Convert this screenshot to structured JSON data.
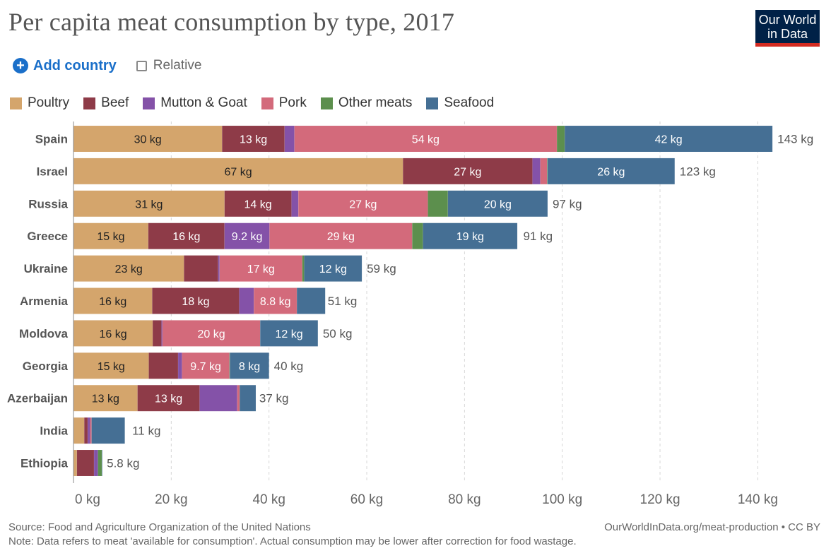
{
  "title": "Per capita meat consumption by type, 2017",
  "logo": {
    "line1": "Our World",
    "line2": "in Data"
  },
  "controls": {
    "add_label": "Add country",
    "add_icon": "plus-icon",
    "relative_label": "Relative"
  },
  "colors": {
    "poultry": "#d4a56c",
    "beef": "#8e3b48",
    "mutton": "#8452a8",
    "pork": "#d36a7b",
    "other": "#5c8f4d",
    "seafood": "#456f94"
  },
  "chart_data": {
    "type": "bar",
    "orientation": "horizontal",
    "stacked": true,
    "title": "Per capita meat consumption by type, 2017",
    "xlabel": "",
    "ylabel": "",
    "unit": "kg",
    "xlim": [
      0,
      143
    ],
    "x_ticks": [
      0,
      20,
      40,
      60,
      80,
      100,
      120,
      140
    ],
    "x_tick_labels": [
      "0 kg",
      "20 kg",
      "40 kg",
      "60 kg",
      "80 kg",
      "100 kg",
      "120 kg",
      "140 kg"
    ],
    "grid": "vertical dashed",
    "legend_position": "top-left",
    "categories": [
      "Spain",
      "Israel",
      "Russia",
      "Greece",
      "Ukraine",
      "Armenia",
      "Moldova",
      "Georgia",
      "Azerbaijan",
      "India",
      "Ethiopia"
    ],
    "totals": [
      143,
      123,
      97,
      91,
      59,
      51,
      50,
      40,
      37,
      11,
      5.8
    ],
    "total_labels": [
      "143 kg",
      "123 kg",
      "97 kg",
      "91 kg",
      "59 kg",
      "51 kg",
      "50 kg",
      "40 kg",
      "37 kg",
      "11 kg",
      "5.8 kg"
    ],
    "series": [
      {
        "name": "Poultry",
        "key": "poultry",
        "values": [
          30.4,
          67.4,
          30.9,
          15.3,
          22.6,
          16.1,
          16.2,
          15.4,
          13.1,
          2.2,
          0.7
        ],
        "labels": [
          "30 kg",
          "67 kg",
          "31 kg",
          "15 kg",
          "23 kg",
          "16 kg",
          "16 kg",
          "15 kg",
          "13 kg",
          "",
          ""
        ]
      },
      {
        "name": "Beef",
        "key": "beef",
        "values": [
          12.8,
          26.5,
          13.7,
          15.6,
          7.0,
          17.8,
          1.8,
          6.0,
          12.7,
          0.7,
          3.5
        ],
        "labels": [
          "13 kg",
          "27 kg",
          "14 kg",
          "16 kg",
          "",
          "18 kg",
          "",
          "",
          "13 kg",
          "",
          ""
        ]
      },
      {
        "name": "Mutton & Goat",
        "key": "mutton",
        "values": [
          2.0,
          1.6,
          1.4,
          9.2,
          0.3,
          3.0,
          0.2,
          0.8,
          7.7,
          0.5,
          0.8
        ],
        "labels": [
          "",
          "",
          "",
          "9.2 kg",
          "",
          "",
          "",
          "",
          "",
          "",
          ""
        ]
      },
      {
        "name": "Pork",
        "key": "pork",
        "values": [
          53.7,
          1.4,
          26.5,
          29.2,
          16.9,
          8.8,
          20.0,
          9.7,
          0.5,
          0.3,
          0.0
        ],
        "labels": [
          "54 kg",
          "",
          "27 kg",
          "29 kg",
          "17 kg",
          "8.8 kg",
          "20 kg",
          "9.7 kg",
          "",
          "",
          ""
        ]
      },
      {
        "name": "Other meats",
        "key": "other",
        "values": [
          1.6,
          0.1,
          4.1,
          2.2,
          0.4,
          0.0,
          0.0,
          0.1,
          0.0,
          0.0,
          0.8
        ],
        "labels": [
          "",
          "",
          "",
          "",
          "",
          "",
          "",
          "",
          "",
          "",
          ""
        ]
      },
      {
        "name": "Seafood",
        "key": "seafood",
        "values": [
          42.5,
          26.0,
          20.4,
          19.3,
          11.8,
          5.8,
          11.8,
          8.0,
          3.3,
          6.8,
          0.1
        ],
        "labels": [
          "42 kg",
          "26 kg",
          "20 kg",
          "19 kg",
          "12 kg",
          "",
          "12 kg",
          "8 kg",
          "",
          "",
          ""
        ]
      }
    ]
  },
  "footer": {
    "source": "Source: Food and Agriculture Organization of the United Nations",
    "note": "Note: Data refers to meat 'available for consumption'. Actual consumption may be lower after correction for food wastage.",
    "url": "OurWorldInData.org/meat-production • CC BY"
  }
}
